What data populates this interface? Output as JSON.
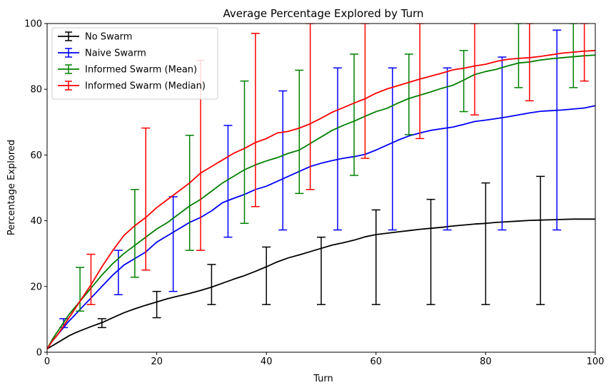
{
  "chart_data": {
    "type": "line",
    "title": "Average Percentage Explored by Turn",
    "xlabel": "Turn",
    "ylabel": "Percentage Explored",
    "xlim": [
      0,
      100
    ],
    "ylim": [
      0,
      100
    ],
    "xticks": [
      "0",
      "20",
      "40",
      "60",
      "80",
      "100"
    ],
    "yticks": [
      "0",
      "20",
      "40",
      "60",
      "80",
      "100"
    ],
    "grid": false,
    "legend_position": "top-left",
    "series": [
      {
        "name": "No Swarm",
        "color": "#000000",
        "x": [
          0,
          1,
          2,
          3,
          4,
          5,
          6,
          8,
          10,
          12,
          14,
          16,
          18,
          20,
          22,
          24,
          26,
          28,
          30,
          32,
          34,
          36,
          38,
          40,
          42,
          44,
          46,
          48,
          50,
          52,
          54,
          56,
          58,
          60,
          62,
          64,
          66,
          68,
          70,
          72,
          74,
          76,
          78,
          80,
          82,
          84,
          86,
          88,
          90,
          92,
          94,
          96,
          98,
          100
        ],
        "y": [
          1,
          2,
          3,
          4,
          5,
          5.8,
          6.5,
          7.8,
          9,
          10.5,
          12,
          13.2,
          14.3,
          15.3,
          16.3,
          17.1,
          17.9,
          18.8,
          19.8,
          21,
          22.2,
          23.3,
          24.6,
          26,
          27.5,
          28.7,
          29.6,
          30.6,
          31.6,
          32.6,
          33.3,
          34.1,
          35.1,
          35.8,
          36.2,
          36.6,
          37.0,
          37.4,
          37.7,
          38.0,
          38.4,
          38.7,
          39.0,
          39.2,
          39.5,
          39.7,
          39.9,
          40.1,
          40.2,
          40.3,
          40.4,
          40.5,
          40.5,
          40.5
        ],
        "errorbars": [
          {
            "x": 10,
            "low": 7.5,
            "high": 10.2
          },
          {
            "x": 20,
            "low": 10.5,
            "high": 18.5
          },
          {
            "x": 30,
            "low": 14.5,
            "high": 26.7
          },
          {
            "x": 40,
            "low": 14.5,
            "high": 32
          },
          {
            "x": 50,
            "low": 14.5,
            "high": 35
          },
          {
            "x": 60,
            "low": 14.5,
            "high": 43.3
          },
          {
            "x": 70,
            "low": 14.5,
            "high": 46.5
          },
          {
            "x": 80,
            "low": 14.5,
            "high": 51.5
          },
          {
            "x": 90,
            "low": 14.5,
            "high": 53.5
          }
        ]
      },
      {
        "name": "Naive Swarm",
        "color": "#0000ff",
        "x": [
          0,
          1,
          2,
          3,
          4,
          5,
          6,
          8,
          10,
          12,
          14,
          16,
          18,
          20,
          22,
          24,
          26,
          28,
          30,
          32,
          34,
          36,
          38,
          40,
          42,
          44,
          46,
          48,
          50,
          52,
          54,
          56,
          58,
          60,
          62,
          64,
          66,
          68,
          70,
          72,
          74,
          76,
          78,
          80,
          82,
          84,
          86,
          88,
          90,
          92,
          94,
          96,
          98,
          100
        ],
        "y": [
          1,
          3.5,
          5.5,
          7.5,
          9.5,
          11.2,
          13,
          16.5,
          20,
          23.5,
          26.5,
          28.5,
          30.5,
          33.5,
          35.5,
          37.5,
          39.5,
          41,
          43,
          45.5,
          46.8,
          48,
          49.5,
          50.5,
          52,
          53.5,
          55,
          56.5,
          57.5,
          58.3,
          59,
          59.5,
          60.2,
          61.5,
          63,
          64.5,
          65.8,
          66.7,
          67.5,
          68,
          68.5,
          69.3,
          70.2,
          70.6,
          71.1,
          71.6,
          72.2,
          72.8,
          73.3,
          73.5,
          73.7,
          74,
          74.3,
          75
        ],
        "errorbars": [
          {
            "x": 3,
            "low": 7.5,
            "high": 10.2
          },
          {
            "x": 13,
            "low": 17.5,
            "high": 31
          },
          {
            "x": 23,
            "low": 18.5,
            "high": 47.3
          },
          {
            "x": 33,
            "low": 35,
            "high": 69
          },
          {
            "x": 43,
            "low": 37.2,
            "high": 79.5
          },
          {
            "x": 53,
            "low": 37.2,
            "high": 86.5
          },
          {
            "x": 63,
            "low": 37.2,
            "high": 86.5
          },
          {
            "x": 73,
            "low": 37.2,
            "high": 86.5
          },
          {
            "x": 83,
            "low": 37.2,
            "high": 89.8
          },
          {
            "x": 93,
            "low": 37.2,
            "high": 98
          }
        ]
      },
      {
        "name": "Informed Swarm (Mean)",
        "color": "#008000",
        "x": [
          0,
          1,
          2,
          3,
          4,
          5,
          6,
          8,
          10,
          12,
          14,
          16,
          18,
          20,
          22,
          24,
          26,
          28,
          30,
          32,
          34,
          36,
          38,
          40,
          42,
          44,
          46,
          48,
          50,
          52,
          54,
          56,
          58,
          60,
          62,
          64,
          66,
          68,
          70,
          72,
          74,
          76,
          78,
          80,
          82,
          84,
          86,
          88,
          90,
          92,
          94,
          96,
          98,
          100
        ],
        "y": [
          1,
          4,
          6.5,
          9,
          11.5,
          13.5,
          15.5,
          19.5,
          23.5,
          27,
          30,
          32.5,
          35,
          37.5,
          39.5,
          42,
          44.5,
          46.5,
          49,
          51.5,
          53.5,
          55.5,
          57,
          58.2,
          59.2,
          60.5,
          61.5,
          63.5,
          65.5,
          67.5,
          69,
          70.3,
          71.8,
          73.2,
          74.2,
          75.8,
          77.2,
          78.2,
          79.2,
          80.3,
          81.2,
          82.8,
          84.5,
          85.4,
          86.1,
          87.1,
          88.0,
          88.3,
          88.9,
          89.3,
          89.6,
          89.9,
          90.2,
          90.4
        ],
        "errorbars": [
          {
            "x": 6,
            "low": 12.5,
            "high": 25.8
          },
          {
            "x": 16,
            "low": 22.8,
            "high": 49.5
          },
          {
            "x": 26,
            "low": 31,
            "high": 66
          },
          {
            "x": 36,
            "low": 39.2,
            "high": 82.5
          },
          {
            "x": 46,
            "low": 48.3,
            "high": 85.8
          },
          {
            "x": 56,
            "low": 53.8,
            "high": 90.7
          },
          {
            "x": 66,
            "low": 66.2,
            "high": 90.7
          },
          {
            "x": 76,
            "low": 73.2,
            "high": 91.8
          },
          {
            "x": 86,
            "low": 80.5,
            "high": 100
          },
          {
            "x": 96,
            "low": 80.5,
            "high": 100
          }
        ]
      },
      {
        "name": "Informed Swarm (Median)",
        "color": "#ff0000",
        "x": [
          0,
          1,
          2,
          3,
          4,
          5,
          6,
          8,
          10,
          12,
          14,
          16,
          18,
          20,
          22,
          24,
          26,
          28,
          30,
          32,
          34,
          36,
          38,
          40,
          42,
          44,
          46,
          48,
          50,
          52,
          54,
          56,
          58,
          60,
          62,
          64,
          66,
          68,
          70,
          72,
          74,
          76,
          78,
          80,
          82,
          84,
          86,
          88,
          90,
          92,
          94,
          96,
          98,
          100
        ],
        "y": [
          1,
          3.5,
          5.5,
          8,
          10.5,
          13,
          15.5,
          20.5,
          26,
          31,
          35.5,
          38.5,
          41,
          44,
          46.5,
          49,
          51.5,
          54.5,
          56.5,
          58.5,
          60.5,
          62,
          63.8,
          65,
          66.7,
          67.2,
          68.2,
          69.5,
          71.2,
          73,
          74.4,
          75.8,
          77.1,
          78.8,
          80.1,
          81.1,
          82.1,
          83.1,
          84.0,
          84.9,
          85.9,
          86.4,
          87.1,
          87.6,
          88.5,
          89.1,
          89.4,
          89.6,
          90.0,
          90.5,
          91.0,
          91.3,
          91.6,
          91.8
        ],
        "errorbars": [
          {
            "x": 8,
            "low": 14.5,
            "high": 29.8
          },
          {
            "x": 18,
            "low": 25,
            "high": 68.2
          },
          {
            "x": 28,
            "low": 31,
            "high": 88.8
          },
          {
            "x": 38,
            "low": 44.3,
            "high": 97
          },
          {
            "x": 48,
            "low": 49.5,
            "high": 100
          },
          {
            "x": 58,
            "low": 59,
            "high": 100
          },
          {
            "x": 68,
            "low": 65,
            "high": 100
          },
          {
            "x": 78,
            "low": 72.2,
            "high": 100
          },
          {
            "x": 88,
            "low": 76.5,
            "high": 100
          },
          {
            "x": 98,
            "low": 82.5,
            "high": 100
          }
        ]
      }
    ]
  }
}
